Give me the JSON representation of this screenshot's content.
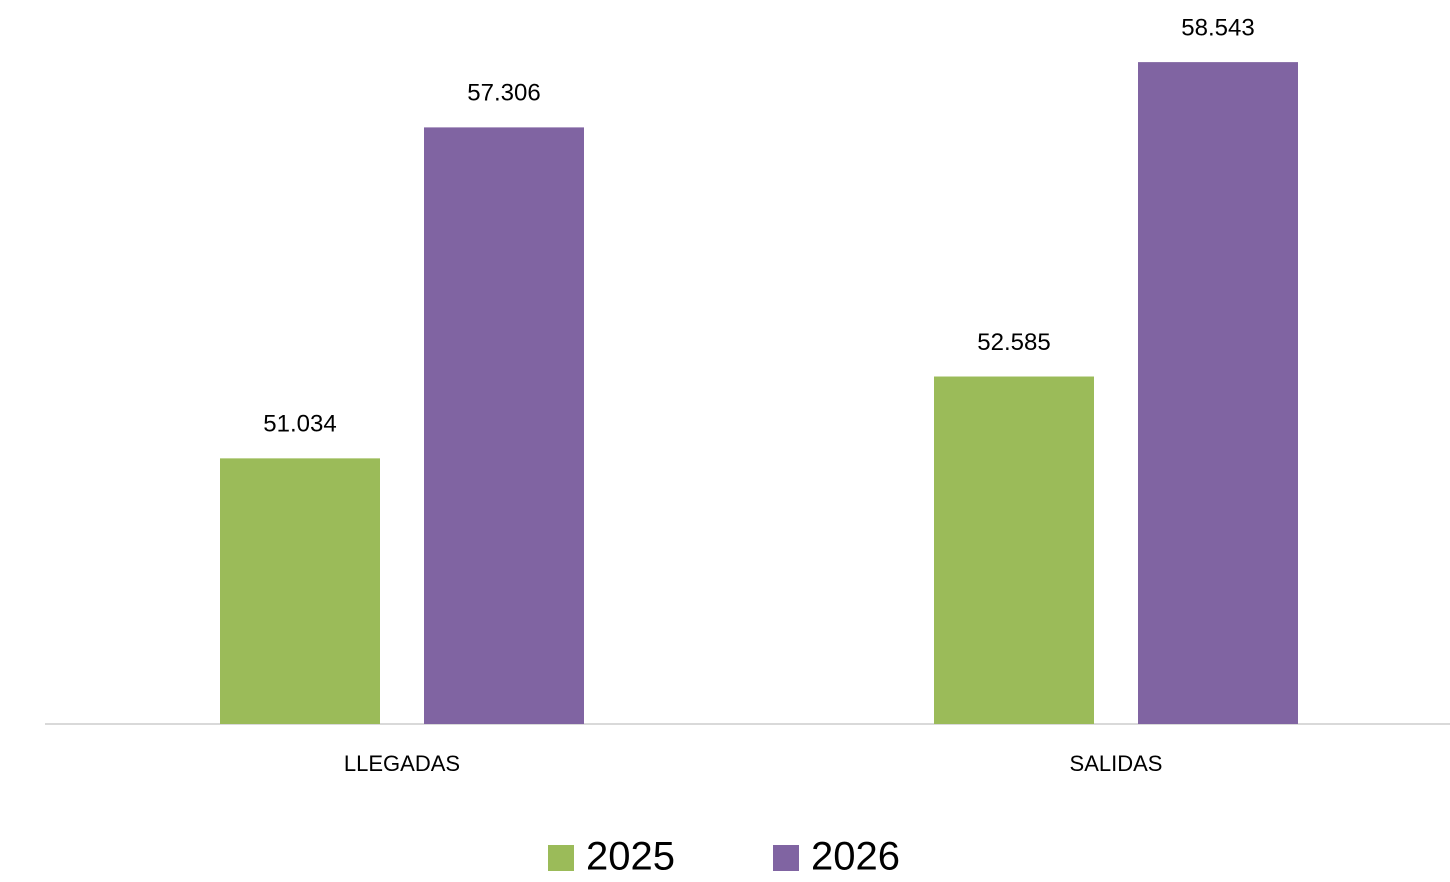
{
  "chart_data": {
    "type": "bar",
    "categories": [
      "LLEGADAS",
      "SALIDAS"
    ],
    "series": [
      {
        "name": "2025",
        "color": "#9bbb59",
        "values": [
          51034,
          52585
        ],
        "value_labels": [
          "51.034",
          "52.585"
        ]
      },
      {
        "name": "2026",
        "color": "#8064a2",
        "values": [
          57306,
          58543
        ],
        "value_labels": [
          "57.306",
          "58.543"
        ]
      }
    ],
    "ylim": [
      46000,
      59000
    ],
    "legend": "bottom"
  }
}
